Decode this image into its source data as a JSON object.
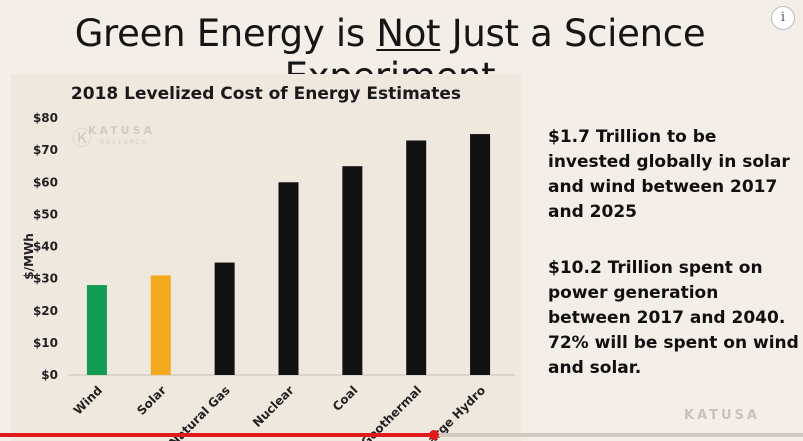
{
  "slide": {
    "title_pre": "Green Energy is ",
    "title_emph": "Not",
    "title_post": " Just a Science Experiment",
    "text_1": "$1.7 Trillion to be invested globally in solar and wind between 2017 and 2025",
    "text_2": "$10.2 Trillion spent on power generation between 2017 and 2040. 72% will be spent on wind and solar.",
    "watermark_brand": "KATUSA",
    "watermark_sub": "RESEARCH",
    "bottom_logo": "KATUSA"
  },
  "player": {
    "info_icon": "info-icon",
    "progress": 0.54
  },
  "chart_data": {
    "type": "bar",
    "title": "2018 Levelized Cost of Energy Estimates",
    "xlabel": "",
    "ylabel": "$/MWh",
    "categories": [
      "Wind",
      "Solar",
      "Natural Gas",
      "Nuclear",
      "Coal",
      "Geothermal",
      "Large Hydro"
    ],
    "values": [
      28,
      31,
      35,
      60,
      65,
      73,
      75
    ],
    "bar_colors": [
      "#139a53",
      "#f4a81d",
      "#111111",
      "#111111",
      "#111111",
      "#111111",
      "#111111"
    ],
    "ylim": [
      0,
      80
    ],
    "yticks": [
      "$0",
      "$10",
      "$20",
      "$30",
      "$40",
      "$50",
      "$60",
      "$70",
      "$80"
    ],
    "grid": false,
    "legend": "none"
  }
}
